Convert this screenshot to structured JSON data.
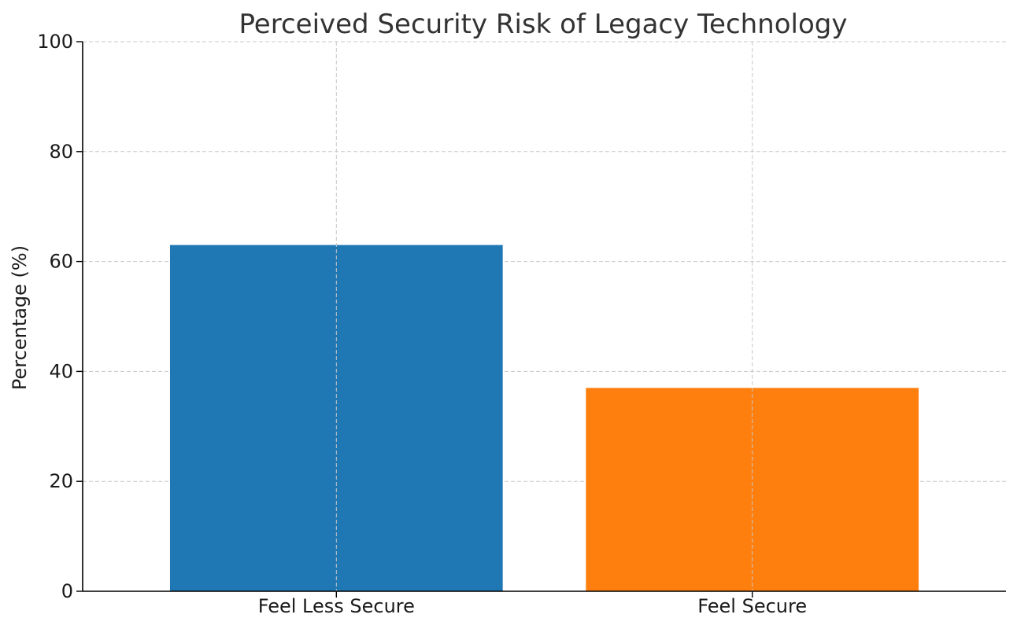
{
  "chart_data": {
    "type": "bar",
    "title": "Perceived Security Risk of Legacy Technology",
    "xlabel": "",
    "ylabel": "Percentage (%)",
    "categories": [
      "Feel Less Secure",
      "Feel Secure"
    ],
    "values": [
      63,
      37
    ],
    "colors": [
      "#1f77b4",
      "#ff7f0e"
    ],
    "ylim": [
      0,
      100
    ],
    "yticks": [
      0,
      20,
      40,
      60,
      80,
      100
    ],
    "grid": true,
    "legend": "none"
  }
}
